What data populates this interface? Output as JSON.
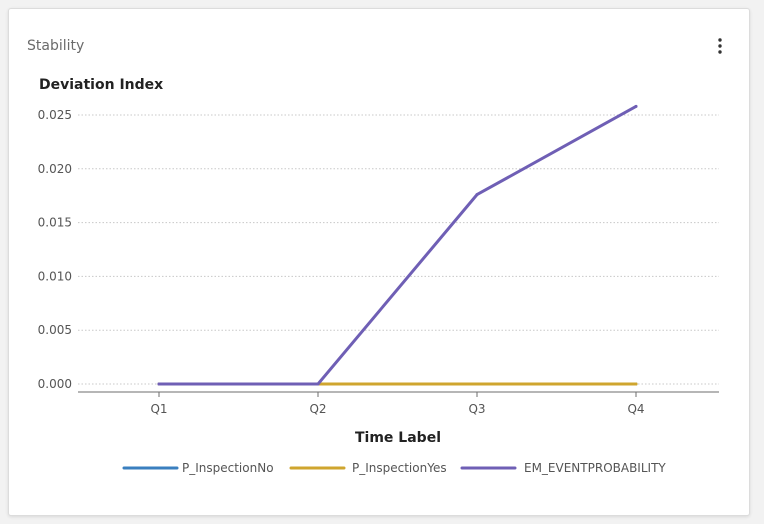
{
  "card": {
    "title": "Stability",
    "menu_icon": "more-vertical-icon"
  },
  "chart_data": {
    "type": "line",
    "title": "",
    "xlabel": "Time Label",
    "ylabel": "Deviation Index",
    "categories": [
      "Q1",
      "Q2",
      "Q3",
      "Q4"
    ],
    "ylim": [
      0,
      0.025
    ],
    "yticks": [
      "0.000",
      "0.005",
      "0.010",
      "0.015",
      "0.020",
      "0.025"
    ],
    "grid": "horizontal dotted",
    "legend_position": "bottom",
    "series": [
      {
        "name": "P_InspectionNo",
        "color": "#3a7fbf",
        "values": [
          0,
          0,
          0,
          0
        ]
      },
      {
        "name": "P_InspectionYes",
        "color": "#cfa52e",
        "values": [
          0,
          0,
          0,
          0
        ]
      },
      {
        "name": "EM_EVENTPROBABILITY",
        "color": "#6f5fb5",
        "values": [
          0,
          0,
          0.0176,
          0.0258
        ]
      }
    ]
  }
}
